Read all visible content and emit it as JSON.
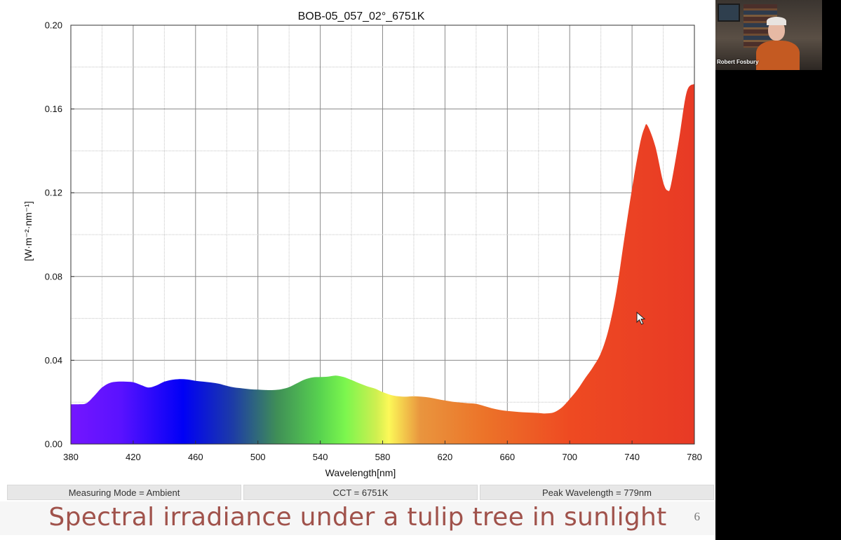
{
  "slide": {
    "caption": "Spectral irradiance under a tulip tree in sunlight",
    "slide_number": "6"
  },
  "status_bar": {
    "measuring_mode": "Measuring Mode = Ambient",
    "cct": "CCT = 6751K",
    "peak_wavelength": "Peak Wavelength = 779nm"
  },
  "webcam": {
    "participant_name": "Robert Fosbury"
  },
  "chart_data": {
    "type": "area",
    "title": "BOB-05_057_02°_6751K",
    "xlabel": "Wavelength[nm]",
    "ylabel": "[W·m⁻²·nm⁻¹]",
    "xlim": [
      380,
      780
    ],
    "ylim": [
      0,
      0.2
    ],
    "xticks": [
      380,
      420,
      460,
      500,
      540,
      580,
      620,
      660,
      700,
      740,
      780
    ],
    "xtick_labels": [
      "380",
      "420",
      "460",
      "500",
      "540",
      "580",
      "620",
      "660",
      "700",
      "740",
      "780"
    ],
    "yticks": [
      0,
      0.04,
      0.08,
      0.12,
      0.16,
      0.2
    ],
    "ytick_labels": [
      "0.00",
      "0.04",
      "0.08",
      "0.12",
      "0.16",
      "0.20"
    ],
    "grid": true,
    "fill": "visible-spectrum gradient",
    "x": [
      380,
      385,
      390,
      395,
      400,
      405,
      410,
      415,
      420,
      425,
      430,
      435,
      440,
      445,
      450,
      455,
      460,
      465,
      470,
      475,
      480,
      485,
      490,
      495,
      500,
      505,
      510,
      515,
      520,
      525,
      530,
      535,
      540,
      545,
      550,
      555,
      560,
      565,
      570,
      575,
      580,
      585,
      590,
      595,
      600,
      605,
      610,
      615,
      620,
      625,
      630,
      635,
      640,
      645,
      650,
      655,
      660,
      665,
      670,
      675,
      680,
      685,
      690,
      695,
      700,
      705,
      710,
      715,
      720,
      725,
      730,
      735,
      740,
      745,
      748,
      750,
      755,
      760,
      763,
      765,
      770,
      775,
      780
    ],
    "y": [
      0.019,
      0.019,
      0.0195,
      0.023,
      0.027,
      0.0292,
      0.0298,
      0.0298,
      0.0295,
      0.0282,
      0.027,
      0.028,
      0.0298,
      0.0307,
      0.031,
      0.0308,
      0.0302,
      0.0298,
      0.0294,
      0.0288,
      0.0278,
      0.027,
      0.0266,
      0.0262,
      0.026,
      0.0258,
      0.0258,
      0.0262,
      0.0272,
      0.029,
      0.0308,
      0.0318,
      0.032,
      0.0322,
      0.0327,
      0.032,
      0.0306,
      0.029,
      0.0276,
      0.0265,
      0.0248,
      0.0235,
      0.0228,
      0.0226,
      0.0228,
      0.0226,
      0.0222,
      0.0215,
      0.0208,
      0.0202,
      0.0198,
      0.0195,
      0.0192,
      0.0182,
      0.0171,
      0.0163,
      0.0158,
      0.0155,
      0.0152,
      0.015,
      0.0148,
      0.0146,
      0.0152,
      0.0175,
      0.0215,
      0.026,
      0.0315,
      0.0368,
      0.0434,
      0.055,
      0.073,
      0.098,
      0.122,
      0.143,
      0.151,
      0.152,
      0.142,
      0.125,
      0.121,
      0.124,
      0.145,
      0.168,
      0.172
    ]
  }
}
